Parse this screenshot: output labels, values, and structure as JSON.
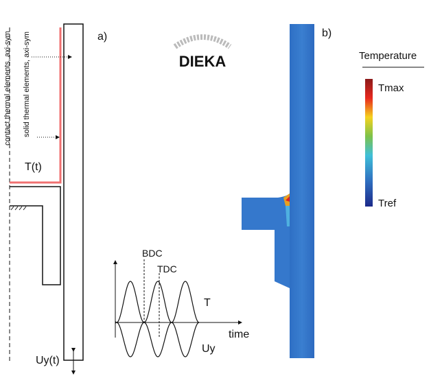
{
  "panel_a": {
    "label": "a)",
    "contact_label": "contact thermal elements, axi-sym",
    "solid_label": "solid thermal elements, axi-sym",
    "temperature_input": "T(t)",
    "displacement_input": "Uy(t)"
  },
  "logo": "DIEKA",
  "cycle_plot": {
    "bdc": "BDC",
    "tdc": "TDC",
    "curve_t": "T",
    "curve_uy": "Uy",
    "x_axis": "time"
  },
  "panel_b": {
    "label": "b)",
    "legend_title": "Temperature",
    "max_label": "Tmax",
    "min_label": "Tref"
  }
}
